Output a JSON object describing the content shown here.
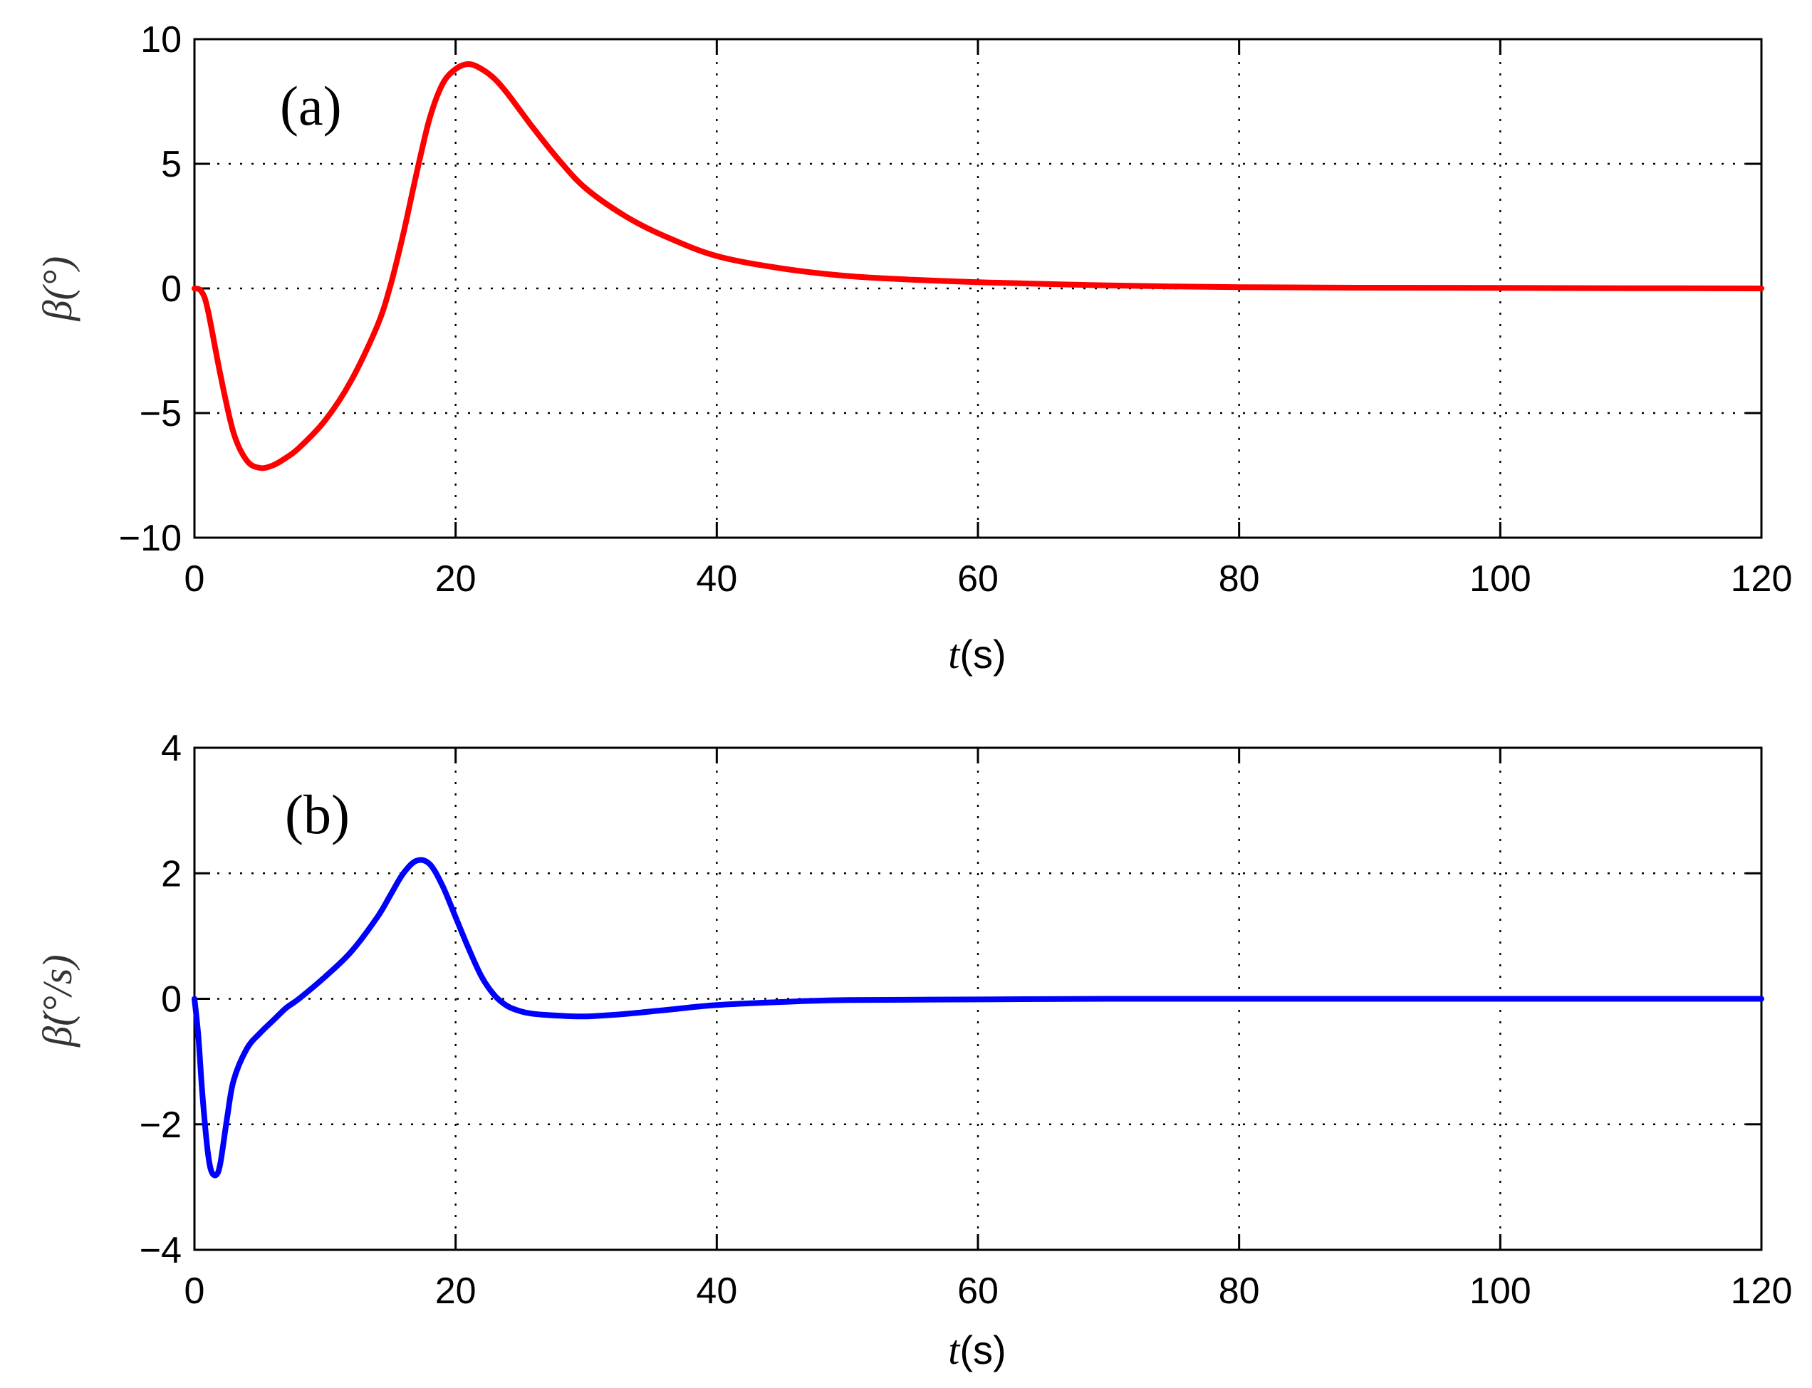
{
  "chart_data": [
    {
      "type": "line",
      "panel_label": "(a)",
      "xlabel": "t(s)",
      "xlabel_parts": [
        "t",
        "(s)"
      ],
      "ylabel": "β(°)",
      "xlim": [
        0,
        120
      ],
      "ylim": [
        -10,
        10
      ],
      "xticks": [
        0,
        20,
        40,
        60,
        80,
        100,
        120
      ],
      "yticks": [
        -10,
        -5,
        0,
        5,
        10
      ],
      "ytick_labels": [
        "−10",
        "−5",
        "0",
        "5",
        "10"
      ],
      "grid": true,
      "series": [
        {
          "color": "#ff0000",
          "x": [
            0,
            0.5,
            1,
            2,
            3,
            4,
            5,
            6,
            7,
            8,
            10,
            12,
            14,
            15,
            16,
            17,
            18,
            19,
            20,
            21,
            22,
            23,
            24,
            26,
            28,
            30,
            33,
            36,
            40,
            45,
            50,
            55,
            60,
            70,
            80,
            90,
            100,
            110,
            120
          ],
          "y": [
            0,
            -0.1,
            -0.8,
            -3.5,
            -5.8,
            -6.9,
            -7.2,
            -7.1,
            -6.8,
            -6.4,
            -5.3,
            -3.7,
            -1.5,
            0.1,
            2.2,
            4.6,
            6.8,
            8.2,
            8.8,
            9.0,
            8.8,
            8.4,
            7.8,
            6.4,
            5.1,
            4.0,
            2.9,
            2.1,
            1.3,
            0.8,
            0.5,
            0.35,
            0.25,
            0.12,
            0.05,
            0.03,
            0.02,
            0.01,
            0.0
          ]
        }
      ]
    },
    {
      "type": "line",
      "panel_label": "(b)",
      "xlabel": "t(s)",
      "xlabel_parts": [
        "t",
        "(s)"
      ],
      "ylabel": "β̇(°/s)",
      "xlim": [
        0,
        120
      ],
      "ylim": [
        -4,
        4
      ],
      "xticks": [
        0,
        20,
        40,
        60,
        80,
        100,
        120
      ],
      "yticks": [
        -4,
        -2,
        0,
        2,
        4
      ],
      "ytick_labels": [
        "−4",
        "−2",
        "0",
        "2",
        "4"
      ],
      "grid": true,
      "series": [
        {
          "color": "#0000ff",
          "x": [
            0,
            0.3,
            0.6,
            1,
            1.3,
            1.7,
            2,
            2.5,
            3,
            4,
            5,
            6,
            7,
            8,
            10,
            12,
            14,
            15,
            16,
            17,
            18,
            19,
            20,
            21,
            22,
            23,
            24,
            25,
            26,
            28,
            30,
            33,
            36,
            40,
            45,
            50,
            60,
            70,
            80,
            90,
            100,
            110,
            120
          ],
          "y": [
            0,
            -0.6,
            -1.5,
            -2.4,
            -2.75,
            -2.8,
            -2.6,
            -1.9,
            -1.3,
            -0.8,
            -0.55,
            -0.35,
            -0.15,
            0.0,
            0.35,
            0.75,
            1.3,
            1.65,
            2.0,
            2.2,
            2.15,
            1.8,
            1.3,
            0.8,
            0.35,
            0.05,
            -0.12,
            -0.2,
            -0.24,
            -0.27,
            -0.28,
            -0.24,
            -0.18,
            -0.1,
            -0.05,
            -0.02,
            -0.01,
            0.0,
            0.0,
            0.0,
            0.0,
            0.0,
            0.0
          ]
        }
      ]
    }
  ]
}
